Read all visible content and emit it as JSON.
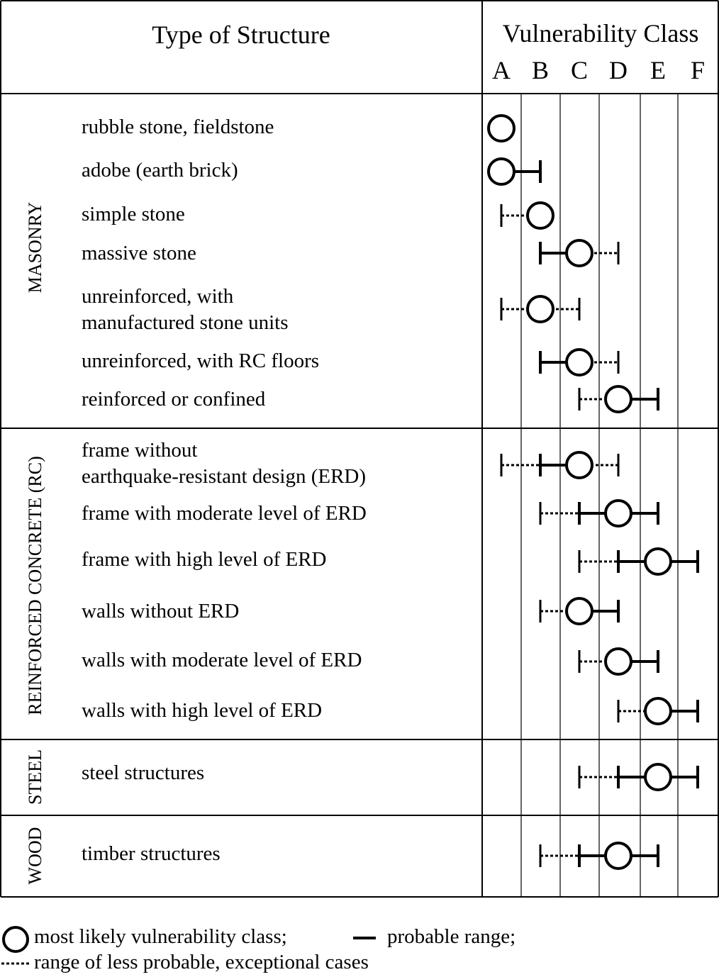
{
  "header": {
    "type_label": "Type of Structure",
    "class_title": "Vulnerability Class",
    "classes": [
      "A",
      "B",
      "C",
      "D",
      "E",
      "F"
    ]
  },
  "groups": [
    {
      "name": "MASONRY",
      "rows": [
        {
          "label": [
            "rubble stone, fieldstone"
          ],
          "likely": "A"
        },
        {
          "label": [
            "adobe (earth brick)"
          ],
          "likely": "A",
          "probable": [
            "A",
            "B"
          ]
        },
        {
          "label": [
            "simple stone"
          ],
          "likely": "B",
          "probable": [
            "B",
            "B"
          ],
          "exceptional": [
            "A",
            "B"
          ]
        },
        {
          "label": [
            "massive stone"
          ],
          "likely": "C",
          "probable": [
            "B",
            "C"
          ],
          "exceptional": [
            "C",
            "D"
          ]
        },
        {
          "label": [
            "unreinforced, with",
            "manufactured stone units"
          ],
          "likely": "B",
          "probable": [
            "B",
            "B"
          ],
          "exceptional": [
            "A",
            "C"
          ]
        },
        {
          "label": [
            "unreinforced, with RC floors"
          ],
          "likely": "C",
          "probable": [
            "B",
            "C"
          ],
          "exceptional": [
            "C",
            "D"
          ]
        },
        {
          "label": [
            "reinforced or confined"
          ],
          "likely": "D",
          "probable": [
            "D",
            "E"
          ],
          "exceptional": [
            "C",
            "D"
          ]
        }
      ]
    },
    {
      "name": "REINFORCED CONCRETE (RC)",
      "rows": [
        {
          "label": [
            "frame without",
            "earthquake-resistant design (ERD)"
          ],
          "likely": "C",
          "probable": [
            "B",
            "C"
          ],
          "exceptional": [
            "A",
            "D"
          ]
        },
        {
          "label": [
            "frame with moderate level of ERD"
          ],
          "likely": "D",
          "probable": [
            "C",
            "E"
          ],
          "exceptional": [
            "B",
            "C"
          ]
        },
        {
          "label": [
            "frame with high level of ERD"
          ],
          "likely": "E",
          "probable": [
            "D",
            "F"
          ],
          "exceptional": [
            "C",
            "D"
          ]
        },
        {
          "label": [
            "walls without  ERD"
          ],
          "likely": "C",
          "probable": [
            "C",
            "D"
          ],
          "exceptional": [
            "B",
            "C"
          ]
        },
        {
          "label": [
            "walls with moderate level of ERD"
          ],
          "likely": "D",
          "probable": [
            "D",
            "E"
          ],
          "exceptional": [
            "C",
            "D"
          ]
        },
        {
          "label": [
            "walls with high level of ERD"
          ],
          "likely": "E",
          "probable": [
            "E",
            "F"
          ],
          "exceptional": [
            "D",
            "E"
          ]
        }
      ]
    },
    {
      "name": "STEEL",
      "rows": [
        {
          "label": [
            "steel structures"
          ],
          "likely": "E",
          "probable": [
            "D",
            "F"
          ],
          "exceptional": [
            "C",
            "D"
          ]
        }
      ]
    },
    {
      "name": "WOOD",
      "rows": [
        {
          "label": [
            "timber structures"
          ],
          "likely": "D",
          "probable": [
            "C",
            "E"
          ],
          "exceptional": [
            "B",
            "C"
          ]
        }
      ]
    }
  ],
  "legend": {
    "likely": "most likely vulnerability class;",
    "probable": "probable range;",
    "exceptional": "range of less probable, exceptional cases"
  }
}
